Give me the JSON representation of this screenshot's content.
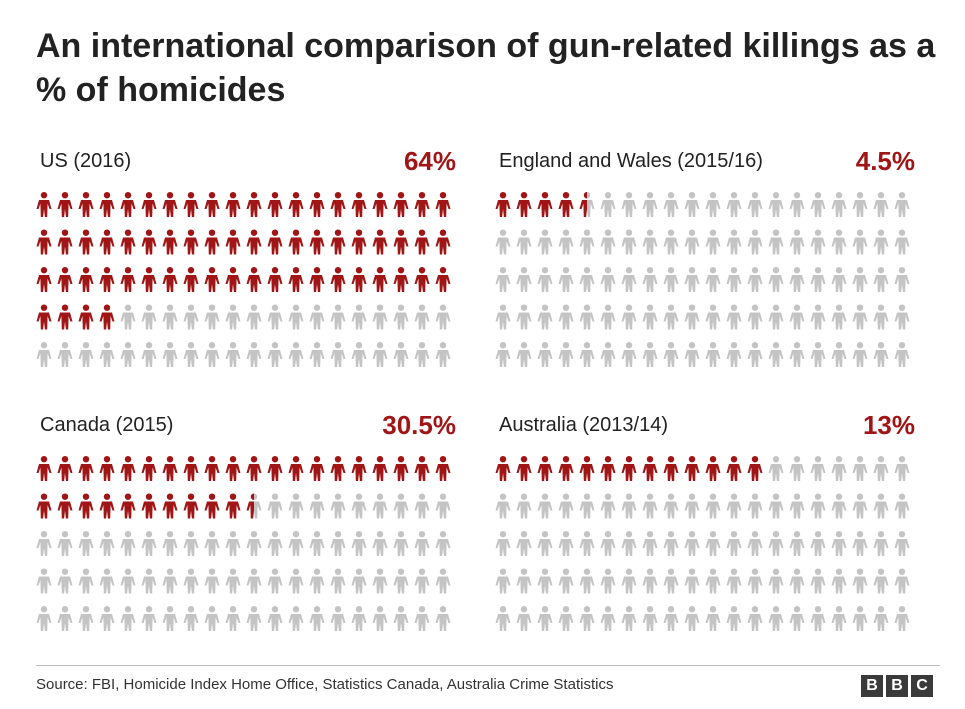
{
  "title": "An international comparison of gun-related killings as a % of homicides",
  "colors": {
    "highlight": "#a01515",
    "base": "#c4c4c4",
    "text": "#222222"
  },
  "icon": "person-icon",
  "chart_data": [
    {
      "type": "pictogram",
      "label": "US (2016)",
      "value_text": "64%",
      "value": 64,
      "total_icons": 100,
      "filled_icons": 64
    },
    {
      "type": "pictogram",
      "label": "England and Wales (2015/16)",
      "value_text": "4.5%",
      "value": 4.5,
      "total_icons": 100,
      "filled_icons": 4.5
    },
    {
      "type": "pictogram",
      "label": "Canada (2015)",
      "value_text": "30.5%",
      "value": 30.5,
      "total_icons": 100,
      "filled_icons": 30.5
    },
    {
      "type": "pictogram",
      "label": "Australia (2013/14)",
      "value_text": "13%",
      "value": 13,
      "total_icons": 100,
      "filled_icons": 13
    }
  ],
  "footer": {
    "source": "Source: FBI, Homicide Index Home Office, Statistics Canada, Australia Crime Statistics",
    "logo_letters": [
      "B",
      "B",
      "C"
    ]
  }
}
